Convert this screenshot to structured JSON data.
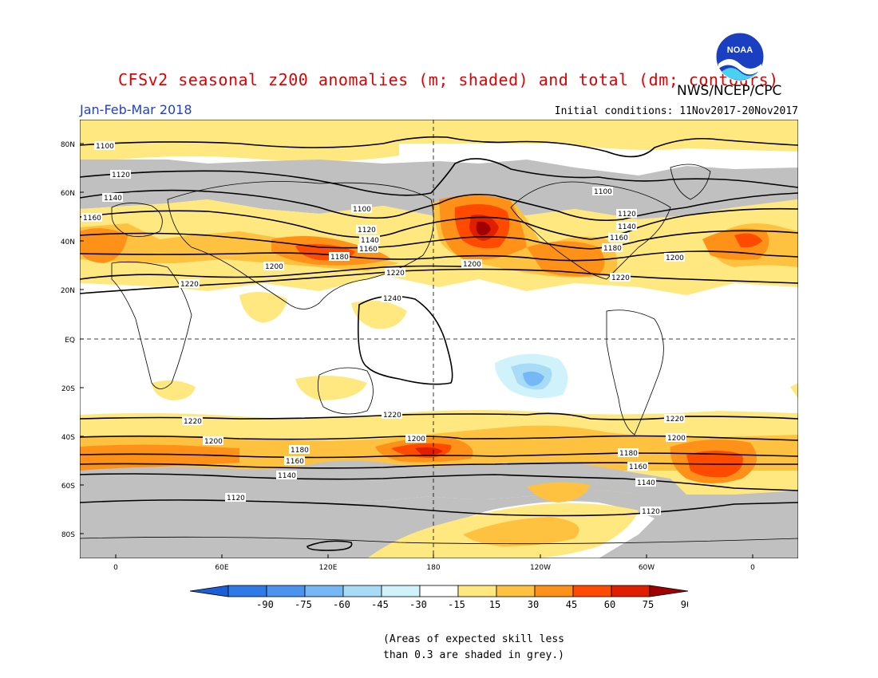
{
  "title": "CFSv2 seasonal z200 anomalies (m; shaded) and total (dm; contours)",
  "organization": "NWS/NCEP/CPC",
  "logo_text": "NOAA",
  "period": "Jan-Feb-Mar 2018",
  "initial_conditions": "Initial conditions: 11Nov2017-20Nov2017",
  "lat_labels": [
    "80N",
    "60N",
    "40N",
    "20N",
    "EQ",
    "20S",
    "40S",
    "60S",
    "80S"
  ],
  "lon_labels": [
    "0",
    "60E",
    "120E",
    "180",
    "120W",
    "60W",
    "0"
  ],
  "contour_labels": [
    "1100",
    "1120",
    "1140",
    "1160",
    "1180",
    "1200",
    "1220",
    "1240"
  ],
  "colorbar": {
    "ticks": [
      "-90",
      "-75",
      "-60",
      "-45",
      "-30",
      "-15",
      "15",
      "30",
      "45",
      "60",
      "75",
      "90"
    ],
    "colors": [
      "#1a5ed8",
      "#2e7ae6",
      "#4a94f0",
      "#76b8f6",
      "#a8dcf6",
      "#d0f2fa",
      "#ffffff",
      "#ffe880",
      "#ffc240",
      "#ff9018",
      "#ff4a00",
      "#e01e00",
      "#a00000"
    ]
  },
  "note_lines": [
    "(Areas of expected skill less",
    "than 0.3 are shaded in grey.)"
  ]
}
